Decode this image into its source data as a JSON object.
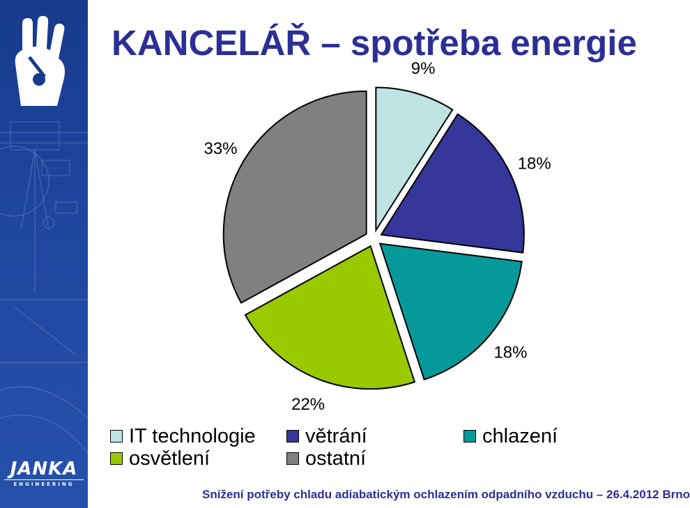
{
  "header": {
    "title": "KANCELÁŘ – spotřeba energie"
  },
  "brand": {
    "name": "JANKA",
    "sub": "ENGINEERING"
  },
  "footer": {
    "text": "Snížení potřeby chladu adiabatickým ochlazením odpadního vzduchu – 26.4.2012 Brno"
  },
  "chart_data": {
    "type": "pie",
    "title": "KANCELÁŘ – spotřeba energie",
    "categories": [
      "IT technologie",
      "větrání",
      "chlazení",
      "osvětlení",
      "ostatní"
    ],
    "values": [
      9,
      18,
      18,
      22,
      33
    ],
    "data_labels": [
      "9%",
      "18%",
      "18%",
      "22%",
      "33%"
    ],
    "colors": [
      "#bfe3e3",
      "#353699",
      "#06999a",
      "#9ac900",
      "#808080"
    ],
    "exploded": true,
    "legend_position": "bottom"
  }
}
